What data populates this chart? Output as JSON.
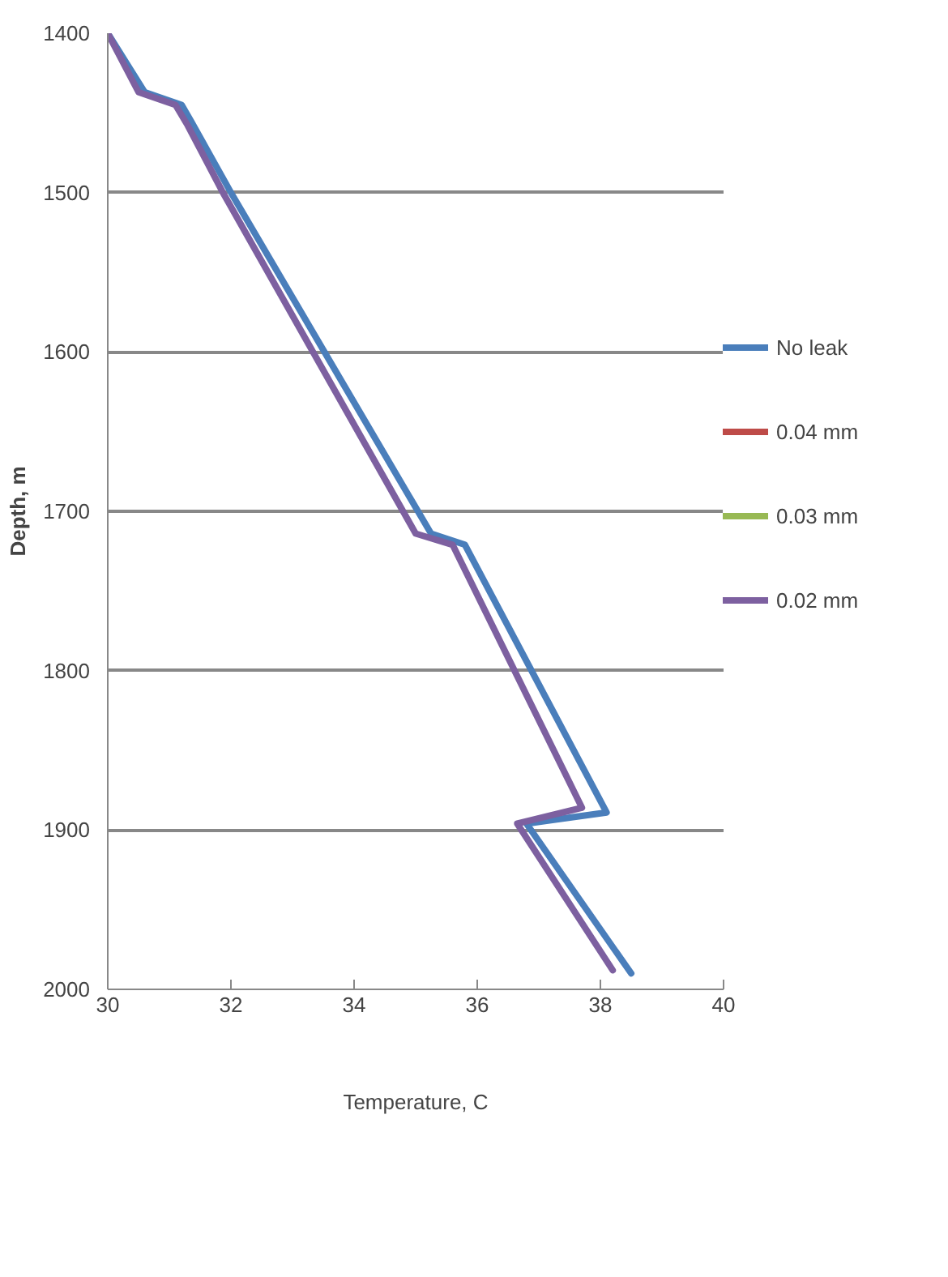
{
  "chart_data": {
    "type": "line",
    "xlabel": "Temperature, C",
    "ylabel": "Depth, m",
    "xlim": [
      30,
      40
    ],
    "xticks": [
      30,
      32,
      34,
      36,
      38,
      40
    ],
    "ylim": [
      2000,
      1400
    ],
    "yticks": [
      1400,
      1500,
      1600,
      1700,
      1800,
      1900,
      2000
    ],
    "grid": "y",
    "legend": "right",
    "line_style": "solid",
    "marker": "none",
    "series": [
      {
        "name": "No leak",
        "color": "#4a7ebb",
        "x": [
          30,
          30.6,
          31.2,
          31.35,
          32.0,
          35.25,
          35.8,
          38.1,
          36.8,
          38.5
        ],
        "values": [
          1400,
          1437,
          1445,
          1455,
          1500,
          1714,
          1721,
          1889,
          1896,
          1990
        ]
      },
      {
        "name": "0.04 mm",
        "color": "#be4b48"
      },
      {
        "name": "0.03 mm",
        "color": "#98b954"
      },
      {
        "name": "0.02 mm",
        "color": "#7d60a0",
        "x": [
          30,
          30.5,
          31.1,
          31.3,
          31.87,
          35.0,
          35.6,
          37.7,
          36.65,
          38.2
        ],
        "values": [
          1400,
          1437,
          1445,
          1458,
          1500,
          1714,
          1721,
          1886,
          1896,
          1988
        ]
      }
    ]
  }
}
